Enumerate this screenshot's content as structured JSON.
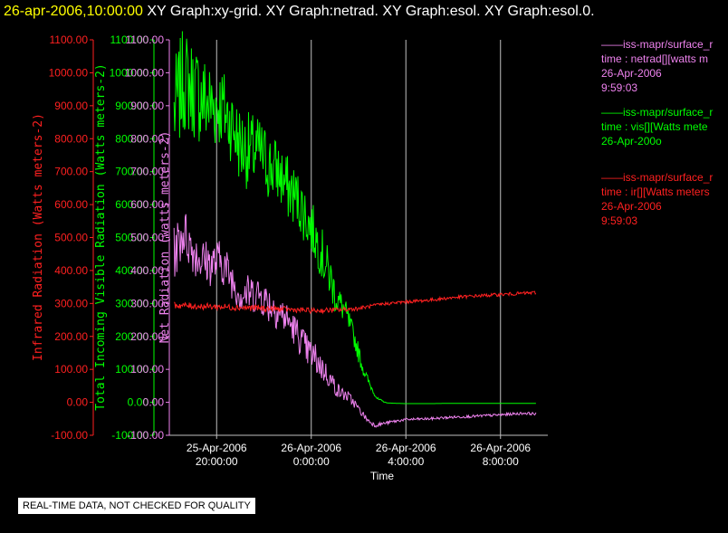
{
  "header": {
    "datetime": "26-apr-2006,10:00:00",
    "titles": "XY Graph:xy-grid.  XY Graph:netrad.  XY Graph:esol.  XY Graph:esol.0."
  },
  "colors": {
    "background": "#000000",
    "netrad": "#ee82ee",
    "vis": "#00ff00",
    "ir": "#ff2020",
    "grid": "#c0c0c0"
  },
  "legend": [
    {
      "line1": "——iss-mapr/surface_r",
      "line2": "time : netrad[][watts m",
      "line3": "26-Apr-2006",
      "line4": "9:59:03",
      "color": "#ee82ee"
    },
    {
      "line1": "——iss-mapr/surface_r",
      "line2": "time : vis[][Watts mete",
      "line3": "26-Apr-200o",
      "line4": "",
      "color": "#00ff00"
    },
    {
      "line1": "——iss-mapr/surface_r",
      "line2": "time : ir[][Watts meters",
      "line3": "26-Apr-2006",
      "line4": "9:59:03",
      "color": "#ff2020"
    }
  ],
  "disclaimer": "REAL-TIME DATA, NOT CHECKED FOR QUALITY",
  "chart_data": {
    "type": "line",
    "xlabel": "Time",
    "x_ticks": [
      {
        "line1": "25-Apr-2006",
        "line2": "20:00:00",
        "hours": -4
      },
      {
        "line1": "26-Apr-2006",
        "line2": "0:00:00",
        "hours": 0
      },
      {
        "line1": "26-Apr-2006",
        "line2": "4:00:00",
        "hours": 4
      },
      {
        "line1": "26-Apr-2006",
        "line2": "8:00:00",
        "hours": 8
      }
    ],
    "x_range_hours": [
      -6.0,
      10.0
    ],
    "ylim": [
      -100,
      1100
    ],
    "y_ticks": [
      "-100.00",
      "0.00",
      "100.00",
      "200.00",
      "300.00",
      "400.00",
      "500.00",
      "600.00",
      "700.00",
      "800.00",
      "900.00",
      "1000.00",
      "1100.00"
    ],
    "y_axes": [
      {
        "label": "Infrared Radiation (Watts meters-2)",
        "color": "#ff2020"
      },
      {
        "label": "Total Incoming Visible Radiation (Watts meters-2)",
        "color": "#00ff00"
      },
      {
        "label": "Net Radiation (watts meters-2)",
        "color": "#ee82ee"
      }
    ],
    "series": [
      {
        "name": "vis",
        "color": "#00ff00",
        "points": [
          [
            -5.8,
            880
          ],
          [
            -5.4,
            980
          ],
          [
            -5.0,
            950
          ],
          [
            -4.6,
            920
          ],
          [
            -4.2,
            900
          ],
          [
            -3.8,
            900
          ],
          [
            -3.4,
            850
          ],
          [
            -3.0,
            780
          ],
          [
            -2.6,
            760
          ],
          [
            -2.2,
            760
          ],
          [
            -1.8,
            720
          ],
          [
            -1.4,
            700
          ],
          [
            -1.0,
            650
          ],
          [
            -0.6,
            620
          ],
          [
            -0.2,
            560
          ],
          [
            0.2,
            500
          ],
          [
            0.5,
            440
          ],
          [
            0.8,
            380
          ],
          [
            1.0,
            330
          ],
          [
            1.2,
            300
          ],
          [
            1.4,
            280
          ],
          [
            1.6,
            240
          ],
          [
            1.8,
            200
          ],
          [
            2.0,
            150
          ],
          [
            2.2,
            100
          ],
          [
            2.5,
            50
          ],
          [
            2.8,
            10
          ],
          [
            3.2,
            -2
          ],
          [
            4.0,
            -4
          ],
          [
            5.0,
            -4
          ],
          [
            6.0,
            -3
          ],
          [
            7.0,
            -3
          ],
          [
            8.0,
            -3
          ],
          [
            9.0,
            -3
          ],
          [
            9.5,
            -3
          ]
        ],
        "noise": [
          160,
          160,
          150,
          150,
          140,
          130,
          120,
          120,
          120,
          110,
          110,
          100,
          100,
          90,
          90,
          80,
          80,
          70,
          60,
          50,
          40,
          40,
          30,
          30,
          20,
          10,
          5,
          0,
          0,
          0,
          0,
          0,
          0,
          0,
          0
        ]
      },
      {
        "name": "netrad",
        "color": "#ee82ee",
        "points": [
          [
            -5.8,
            450
          ],
          [
            -5.4,
            520
          ],
          [
            -5.0,
            460
          ],
          [
            -4.6,
            430
          ],
          [
            -4.2,
            420
          ],
          [
            -3.8,
            430
          ],
          [
            -3.4,
            380
          ],
          [
            -3.0,
            330
          ],
          [
            -2.6,
            330
          ],
          [
            -2.2,
            330
          ],
          [
            -1.8,
            300
          ],
          [
            -1.4,
            280
          ],
          [
            -1.0,
            250
          ],
          [
            -0.6,
            210
          ],
          [
            -0.2,
            160
          ],
          [
            0.2,
            130
          ],
          [
            0.5,
            100
          ],
          [
            0.8,
            70
          ],
          [
            1.0,
            50
          ],
          [
            1.2,
            30
          ],
          [
            1.5,
            20
          ],
          [
            1.8,
            0
          ],
          [
            2.1,
            -30
          ],
          [
            2.4,
            -55
          ],
          [
            2.7,
            -70
          ],
          [
            3.0,
            -65
          ],
          [
            3.5,
            -58
          ],
          [
            4.0,
            -52
          ],
          [
            5.0,
            -50
          ],
          [
            6.0,
            -45
          ],
          [
            7.0,
            -42
          ],
          [
            8.0,
            -38
          ],
          [
            9.0,
            -33
          ],
          [
            9.5,
            -35
          ]
        ],
        "noise": [
          80,
          80,
          70,
          70,
          70,
          70,
          60,
          60,
          60,
          60,
          60,
          60,
          50,
          50,
          50,
          50,
          40,
          30,
          30,
          20,
          20,
          15,
          10,
          8,
          6,
          5,
          5,
          4,
          4,
          4,
          4,
          4,
          4,
          4
        ]
      },
      {
        "name": "ir",
        "color": "#ff2020",
        "points": [
          [
            -5.8,
            295
          ],
          [
            -5.0,
            292
          ],
          [
            -4.0,
            290
          ],
          [
            -3.0,
            288
          ],
          [
            -2.0,
            285
          ],
          [
            -1.0,
            282
          ],
          [
            0.0,
            278
          ],
          [
            1.0,
            280
          ],
          [
            2.0,
            285
          ],
          [
            3.0,
            298
          ],
          [
            4.0,
            305
          ],
          [
            5.0,
            310
          ],
          [
            6.0,
            318
          ],
          [
            7.0,
            323
          ],
          [
            8.0,
            327
          ],
          [
            9.0,
            331
          ],
          [
            9.5,
            333
          ]
        ],
        "noise": [
          10,
          10,
          10,
          10,
          10,
          8,
          8,
          8,
          6,
          5,
          5,
          5,
          5,
          5,
          5,
          5,
          5
        ]
      }
    ]
  }
}
